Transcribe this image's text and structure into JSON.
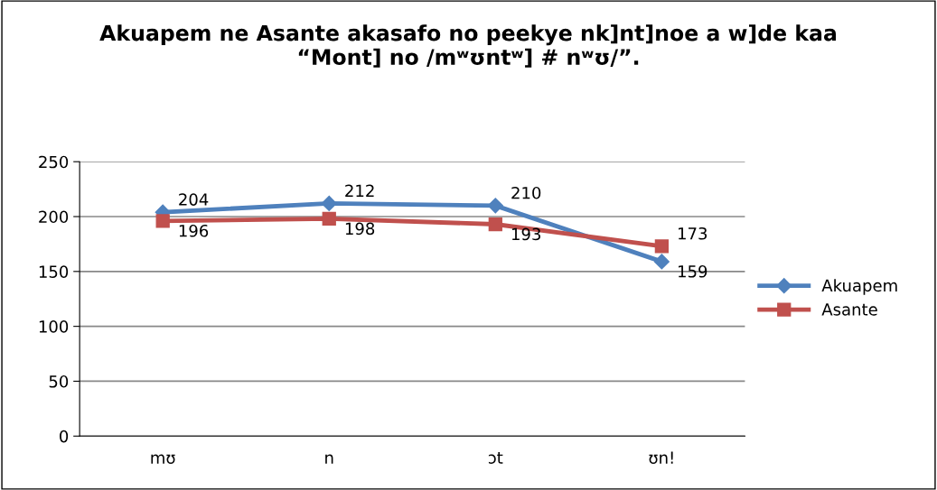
{
  "chart_data": {
    "type": "line",
    "title": "Akuapem ne Asante akasafo no peekye nk]nt]noe a w]de kaa\n“Mont] no /mʷʊntʷ] # nʷʊ/”.",
    "categories": [
      "mʊ",
      "n",
      "ɔt",
      "ʊn!"
    ],
    "series": [
      {
        "name": "Akuapem",
        "color": "#4f81bd",
        "values": [
          204,
          212,
          210,
          159
        ],
        "marker": "diamond"
      },
      {
        "name": "Asante",
        "color": "#c0504d",
        "values": [
          196,
          198,
          193,
          173
        ],
        "marker": "square"
      }
    ],
    "ylim": [
      0,
      250
    ],
    "yticks": [
      0,
      50,
      100,
      150,
      200,
      250
    ],
    "grid": "y",
    "legend": "right",
    "data_labels": true,
    "line_style": "solid"
  }
}
